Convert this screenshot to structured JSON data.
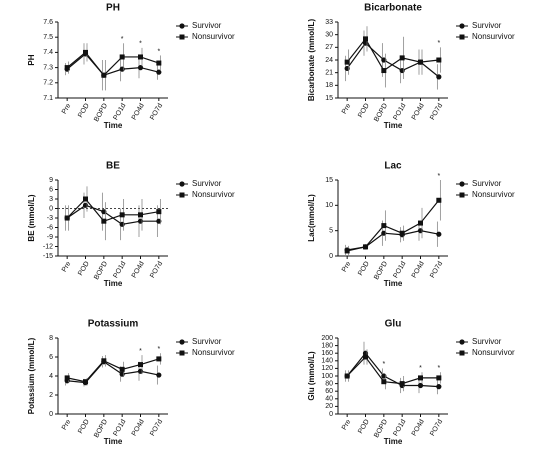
{
  "chart_data": [
    {
      "type": "line",
      "title": "PH",
      "y_label": "PH",
      "x_label": "Time",
      "categories": [
        "Pre",
        "POD",
        "BOPD",
        "PO1d",
        "PO4d",
        "PO7d"
      ],
      "ylim": [
        7.1,
        7.6
      ],
      "yticks": [
        7.1,
        7.2,
        7.3,
        7.4,
        7.5,
        7.6
      ],
      "series": [
        {
          "name": "Survivor",
          "color": "#111111",
          "marker": "circle",
          "values": [
            7.29,
            7.39,
            7.25,
            7.29,
            7.3,
            7.27
          ],
          "errors": [
            0.04,
            0.07,
            0.1,
            0.08,
            0.07,
            0.05
          ]
        },
        {
          "name": "Nonsurvivor",
          "color": "#111111",
          "marker": "square",
          "values": [
            7.3,
            7.4,
            7.25,
            7.37,
            7.37,
            7.33
          ],
          "errors": [
            0.04,
            0.06,
            0.1,
            0.09,
            0.06,
            0.05
          ]
        }
      ],
      "annotations": [
        {
          "text": "*",
          "category": "PO1d"
        },
        {
          "text": "*",
          "category": "PO4d"
        },
        {
          "text": "*",
          "category": "PO7d"
        }
      ]
    },
    {
      "type": "line",
      "title": "Bicarbonate",
      "y_label": "Bicarbonate (mmol/L)",
      "x_label": "Time",
      "categories": [
        "Pre",
        "POD",
        "BOPD",
        "PO1d",
        "PO4d",
        "PO7d"
      ],
      "ylim": [
        15,
        33
      ],
      "yticks": [
        15,
        18,
        21,
        24,
        27,
        30,
        33
      ],
      "series": [
        {
          "name": "Survivor",
          "color": "#111111",
          "marker": "circle",
          "values": [
            22,
            28,
            24,
            21.5,
            23.5,
            20
          ],
          "errors": [
            3,
            3,
            4,
            3,
            3,
            3
          ]
        },
        {
          "name": "Nonsurvivor",
          "color": "#111111",
          "marker": "square",
          "values": [
            23.5,
            29,
            21.5,
            24.5,
            23.5,
            24
          ],
          "errors": [
            3,
            3,
            4,
            5,
            3,
            3
          ]
        }
      ],
      "annotations": [
        {
          "text": "*",
          "category": "PO7d"
        }
      ]
    },
    {
      "type": "line",
      "title": "BE",
      "y_label": "BE (mmol/L)",
      "x_label": "Time",
      "categories": [
        "Pre",
        "POD",
        "BOPD",
        "PO1d",
        "PO4d",
        "PO7d"
      ],
      "ylim": [
        -15,
        9
      ],
      "yticks": [
        -15,
        -12,
        -9,
        -6,
        -3,
        0,
        3,
        6,
        9
      ],
      "reference_line": 0,
      "series": [
        {
          "name": "Survivor",
          "color": "#111111",
          "marker": "circle",
          "values": [
            -3,
            1,
            -1,
            -5,
            -4,
            -4
          ],
          "errors": [
            4,
            4,
            6,
            5,
            5,
            5
          ]
        },
        {
          "name": "Nonsurvivor",
          "color": "#111111",
          "marker": "square",
          "values": [
            -3,
            3,
            -4,
            -2,
            -2,
            -1
          ],
          "errors": [
            4,
            4,
            6,
            5,
            5,
            4
          ]
        }
      ],
      "annotations": []
    },
    {
      "type": "line",
      "title": "Lac",
      "y_label": "Lac(mmol/L)",
      "x_label": "Time",
      "categories": [
        "Pre",
        "POD",
        "BOPD",
        "PO1d",
        "PO4d",
        "PO7d"
      ],
      "ylim": [
        0,
        15
      ],
      "yticks": [
        0,
        5,
        10,
        15
      ],
      "series": [
        {
          "name": "Survivor",
          "color": "#111111",
          "marker": "circle",
          "values": [
            1.2,
            1.8,
            4.5,
            4.2,
            5,
            4.3
          ],
          "errors": [
            1,
            0.5,
            2.5,
            1.5,
            2,
            2.5
          ]
        },
        {
          "name": "Nonsurvivor",
          "color": "#111111",
          "marker": "square",
          "values": [
            1,
            1.8,
            6,
            4.5,
            6.5,
            11
          ],
          "errors": [
            1,
            0.5,
            3,
            1.5,
            3,
            4
          ]
        }
      ],
      "annotations": [
        {
          "text": "*",
          "category": "PO7d"
        }
      ]
    },
    {
      "type": "line",
      "title": "Potassium",
      "y_label": "Potassium (mmol/L)",
      "x_label": "Time",
      "categories": [
        "Pre",
        "POD",
        "BOPD",
        "PO1d",
        "PO4d",
        "PO7d"
      ],
      "ylim": [
        0,
        8
      ],
      "yticks": [
        0,
        2,
        4,
        6,
        8
      ],
      "series": [
        {
          "name": "Survivor",
          "color": "#111111",
          "marker": "circle",
          "values": [
            3.5,
            3.3,
            5.5,
            4.2,
            4.5,
            4.1
          ],
          "errors": [
            0.5,
            0.4,
            0.6,
            0.8,
            1,
            1
          ]
        },
        {
          "name": "Nonsurvivor",
          "color": "#111111",
          "marker": "square",
          "values": [
            3.8,
            3.4,
            5.6,
            4.7,
            5.2,
            5.8
          ],
          "errors": [
            0.5,
            0.4,
            0.6,
            0.8,
            1,
            0.6
          ]
        }
      ],
      "annotations": [
        {
          "text": "*",
          "category": "PO4d"
        },
        {
          "text": "*",
          "category": "PO7d"
        }
      ]
    },
    {
      "type": "line",
      "title": "Glu",
      "y_label": "Glu (mmol/L)",
      "x_label": "Time",
      "categories": [
        "Pre",
        "POD",
        "BOPD",
        "PO1d",
        "PO4d",
        "PO7d"
      ],
      "ylim": [
        0,
        200
      ],
      "yticks": [
        0,
        20,
        40,
        60,
        80,
        100,
        120,
        140,
        160,
        180,
        200
      ],
      "series": [
        {
          "name": "Survivor",
          "color": "#111111",
          "marker": "circle",
          "values": [
            100,
            160,
            100,
            75,
            75,
            72
          ],
          "errors": [
            15,
            30,
            20,
            20,
            20,
            20
          ]
        },
        {
          "name": "Nonsurvivor",
          "color": "#111111",
          "marker": "square",
          "values": [
            100,
            150,
            85,
            80,
            95,
            95
          ],
          "errors": [
            15,
            20,
            20,
            20,
            15,
            15
          ]
        }
      ],
      "annotations": [
        {
          "text": "*",
          "category": "BOPD"
        },
        {
          "text": "*",
          "category": "PO4d"
        },
        {
          "text": "*",
          "category": "PO7d"
        }
      ]
    }
  ]
}
